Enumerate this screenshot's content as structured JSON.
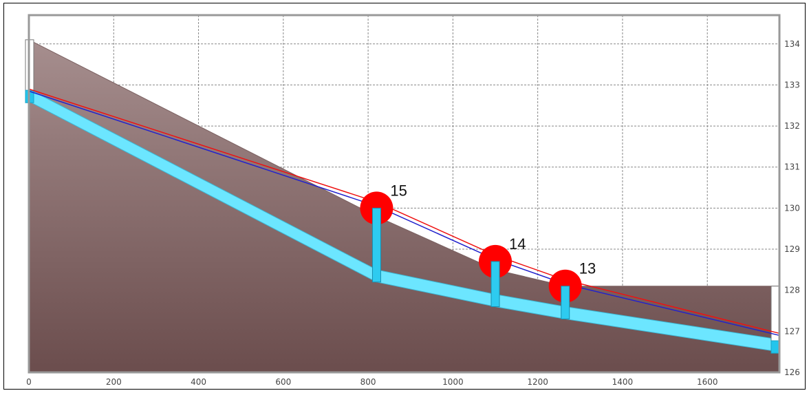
{
  "chart_data": {
    "type": "profile",
    "title": "",
    "xlabel": "",
    "ylabel": "",
    "xlim": [
      0,
      1770
    ],
    "ylim": [
      126,
      134.7
    ],
    "x_ticks": [
      0,
      200,
      400,
      600,
      800,
      1000,
      1200,
      1400,
      1600
    ],
    "y_ticks": [
      126,
      127,
      128,
      129,
      130,
      131,
      132,
      133,
      134
    ],
    "grid": true,
    "ground_surface": [
      {
        "x": 0,
        "y": 134.1
      },
      {
        "x": 820,
        "y": 129.8
      },
      {
        "x": 1100,
        "y": 128.5
      },
      {
        "x": 1265,
        "y": 128.1
      },
      {
        "x": 1770,
        "y": 128.1
      }
    ],
    "pipe_invert": [
      {
        "x": 0,
        "y": 132.6
      },
      {
        "x": 820,
        "y": 128.2
      },
      {
        "x": 1100,
        "y": 127.6
      },
      {
        "x": 1265,
        "y": 127.3
      },
      {
        "x": 1770,
        "y": 126.5
      }
    ],
    "pipe_crown_offset": 0.3,
    "hydraulic_grade_line": [
      {
        "x": 0,
        "y": 132.85
      },
      {
        "x": 820,
        "y": 130.05
      },
      {
        "x": 1100,
        "y": 128.75
      },
      {
        "x": 1265,
        "y": 128.15
      },
      {
        "x": 1770,
        "y": 126.9
      }
    ],
    "energy_grade_line": [
      {
        "x": 0,
        "y": 132.9
      },
      {
        "x": 820,
        "y": 130.15
      },
      {
        "x": 1100,
        "y": 128.85
      },
      {
        "x": 1265,
        "y": 128.25
      },
      {
        "x": 1770,
        "y": 126.95
      }
    ],
    "nodes": [
      {
        "label": "15",
        "x": 820,
        "invert": 128.2,
        "top": 130.0,
        "marker_y": 130.0
      },
      {
        "label": "14",
        "x": 1100,
        "invert": 127.6,
        "top": 128.7,
        "marker_y": 128.7
      },
      {
        "label": "13",
        "x": 1265,
        "invert": 127.3,
        "top": 128.1,
        "marker_y": 128.1
      }
    ],
    "end_structures": [
      {
        "x": 0,
        "bottom": 132.6,
        "top": 134.1
      },
      {
        "x": 1770,
        "bottom": 126.5,
        "top": 128.1
      }
    ],
    "colors": {
      "ground_top": "#a68e8e",
      "ground_bottom": "#6b4d4d",
      "pipe": "#6ce6ff",
      "hgl": "#2222cc",
      "egl": "#ee1111",
      "node": "#ff0000",
      "riser": "#2ecbf0"
    }
  }
}
